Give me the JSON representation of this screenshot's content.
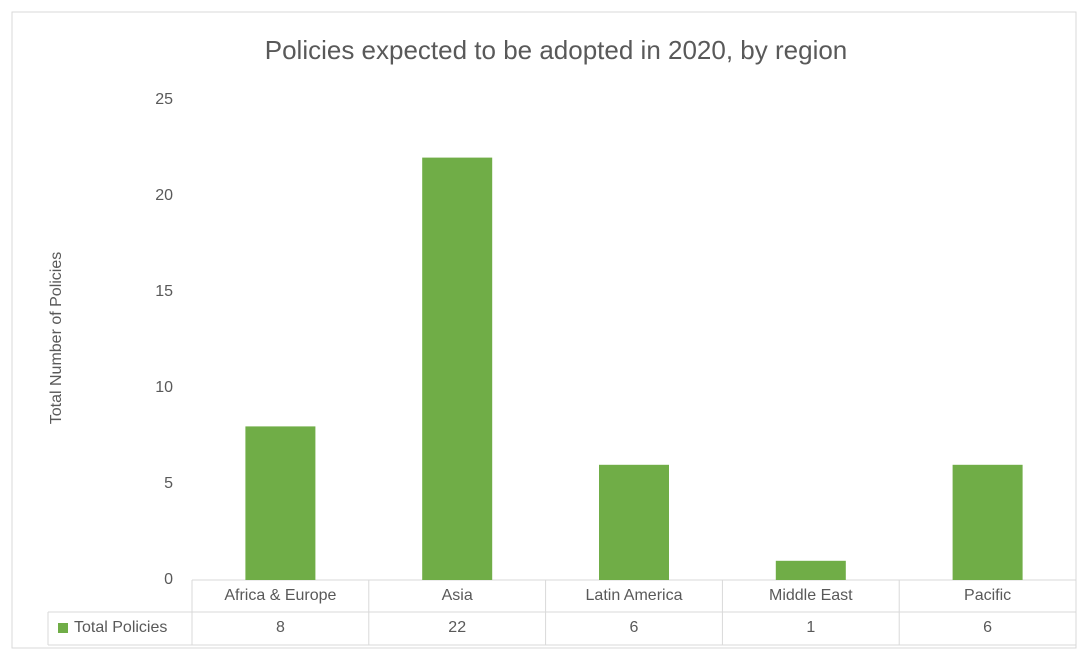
{
  "chart_data": {
    "type": "bar",
    "title": "Policies expected to be adopted in 2020, by region",
    "y_label": "Total Number of Policies",
    "categories": [
      "Africa & Europe",
      "Asia",
      "Latin America",
      "Middle East",
      "Pacific"
    ],
    "series": [
      {
        "name": "Total Policies",
        "color": "#70ad47",
        "values": [
          8,
          22,
          6,
          1,
          6
        ]
      }
    ],
    "ylim": [
      0,
      25
    ],
    "yticks": [
      0,
      5,
      10,
      15,
      20,
      25
    ],
    "grid": false,
    "data_table": true
  }
}
